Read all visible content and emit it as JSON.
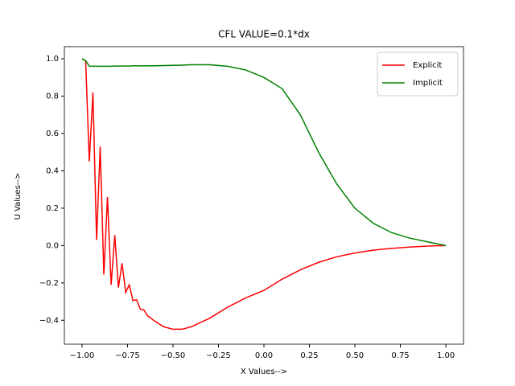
{
  "chart_data": {
    "type": "line",
    "title": "CFL VALUE=0.1*dx",
    "x_label": "X Values-->",
    "y_label": "U Values-->",
    "x": [
      -1.0,
      -0.98,
      -0.96,
      -0.94,
      -0.92,
      -0.9,
      -0.88,
      -0.86,
      -0.84,
      -0.82,
      -0.8,
      -0.78,
      -0.76,
      -0.74,
      -0.72,
      -0.7,
      -0.68,
      -0.66,
      -0.64,
      -0.6,
      -0.55,
      -0.5,
      -0.45,
      -0.4,
      -0.3,
      -0.2,
      -0.1,
      0.0,
      0.1,
      0.2,
      0.3,
      0.4,
      0.5,
      0.6,
      0.7,
      0.8,
      0.9,
      1.0
    ],
    "series": [
      {
        "name": "Explicit",
        "color": "#ff0000",
        "values": [
          1.0,
          0.99,
          0.45,
          0.82,
          0.03,
          0.53,
          -0.155,
          0.26,
          -0.21,
          0.056,
          -0.225,
          -0.095,
          -0.25,
          -0.21,
          -0.295,
          -0.29,
          -0.34,
          -0.345,
          -0.375,
          -0.405,
          -0.435,
          -0.448,
          -0.448,
          -0.435,
          -0.39,
          -0.33,
          -0.28,
          -0.24,
          -0.18,
          -0.13,
          -0.09,
          -0.06,
          -0.04,
          -0.025,
          -0.015,
          -0.008,
          -0.003,
          0.0
        ]
      },
      {
        "name": "Implicit",
        "color": "#008000",
        "values": [
          1.0,
          0.99,
          0.96,
          0.96,
          0.96,
          0.96,
          0.96,
          0.96,
          0.96,
          0.961,
          0.961,
          0.961,
          0.961,
          0.961,
          0.962,
          0.962,
          0.962,
          0.962,
          0.962,
          0.963,
          0.964,
          0.965,
          0.966,
          0.968,
          0.968,
          0.96,
          0.94,
          0.9,
          0.84,
          0.7,
          0.5,
          0.33,
          0.2,
          0.12,
          0.07,
          0.04,
          0.02,
          0.0
        ]
      }
    ],
    "xlim": [
      -1.097,
      1.097
    ],
    "ylim": [
      -0.528,
      1.065
    ],
    "xticks": [
      {
        "value": -1.0,
        "label": "−1.00"
      },
      {
        "value": -0.75,
        "label": "−0.75"
      },
      {
        "value": -0.5,
        "label": "−0.50"
      },
      {
        "value": -0.25,
        "label": "−0.25"
      },
      {
        "value": 0.0,
        "label": "0.00"
      },
      {
        "value": 0.25,
        "label": "0.25"
      },
      {
        "value": 0.5,
        "label": "0.50"
      },
      {
        "value": 0.75,
        "label": "0.75"
      },
      {
        "value": 1.0,
        "label": "1.00"
      }
    ],
    "yticks": [
      {
        "value": -0.4,
        "label": "−0.4"
      },
      {
        "value": -0.2,
        "label": "−0.2"
      },
      {
        "value": 0.0,
        "label": "0.0"
      },
      {
        "value": 0.2,
        "label": "0.2"
      },
      {
        "value": 0.4,
        "label": "0.4"
      },
      {
        "value": 0.6,
        "label": "0.6"
      },
      {
        "value": 0.8,
        "label": "0.8"
      },
      {
        "value": 1.0,
        "label": "1.0"
      }
    ],
    "legend": "upper right",
    "grid": false
  }
}
